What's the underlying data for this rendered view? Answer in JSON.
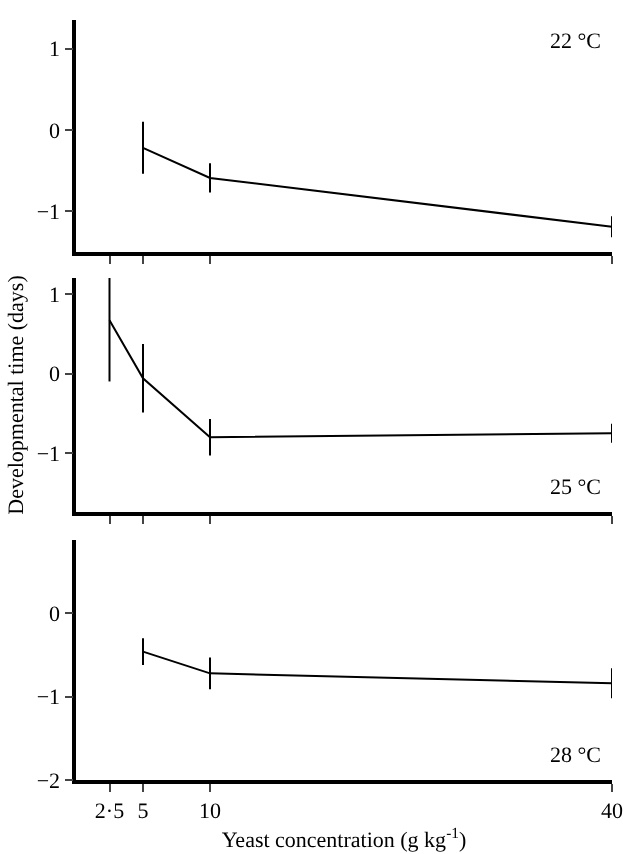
{
  "chart_data": [
    {
      "type": "line",
      "x": [
        5,
        10,
        40
      ],
      "series": [
        {
          "color": "#000000",
          "values": [
            -0.22,
            -0.59,
            -1.19
          ],
          "errors": [
            0.32,
            0.18,
            0.13
          ]
        }
      ],
      "xlim": [
        0,
        40
      ],
      "xticks": [
        {
          "value": 2.5,
          "label": null
        },
        {
          "value": 5,
          "label": null
        },
        {
          "value": 10,
          "label": null
        },
        {
          "value": 40,
          "label": null
        }
      ],
      "ylim": [
        -1.5,
        1.35
      ],
      "yticks": [
        -1,
        0,
        1
      ],
      "tick_labels": "y",
      "annotations": [
        "22 °C"
      ],
      "marker": "none",
      "line_style": "solid"
    },
    {
      "type": "line",
      "x": [
        2.5,
        5,
        10,
        40
      ],
      "series": [
        {
          "color": "#000000",
          "values": [
            0.67,
            -0.06,
            -0.8,
            -0.75
          ],
          "errors": [
            0.77,
            0.43,
            0.23,
            0.12
          ]
        }
      ],
      "xlim": [
        0,
        40
      ],
      "xticks": [
        {
          "value": 2.5,
          "label": null
        },
        {
          "value": 5,
          "label": null
        },
        {
          "value": 10,
          "label": null
        },
        {
          "value": 40,
          "label": null
        }
      ],
      "ylim": [
        -1.74,
        1.2
      ],
      "yticks": [
        -1,
        0,
        1
      ],
      "tick_labels": "y",
      "ylabel": "Developmental time (days)",
      "annotations": [
        "25 °C"
      ],
      "marker": "none",
      "line_style": "solid"
    },
    {
      "type": "line",
      "x": [
        5,
        10,
        40
      ],
      "series": [
        {
          "color": "#000000",
          "values": [
            -0.46,
            -0.72,
            -0.84
          ],
          "errors": [
            0.16,
            0.19,
            0.18
          ]
        }
      ],
      "xlim": [
        0,
        40
      ],
      "xticks": [
        {
          "value": 2.5,
          "label": "2·5"
        },
        5,
        10,
        40
      ],
      "ylim": [
        -2,
        0.88
      ],
      "yticks": [
        -2,
        -1,
        0
      ],
      "xlabel": "Yeast concentration (g kg$^{-1}$)",
      "annotations": [
        "28 °C"
      ],
      "marker": "none",
      "line_style": "solid"
    }
  ]
}
